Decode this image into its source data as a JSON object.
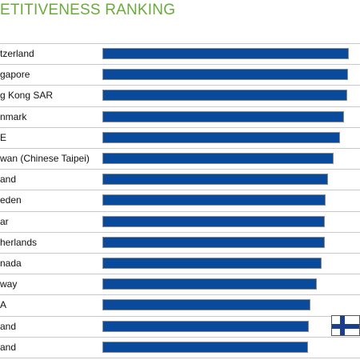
{
  "chart_data": {
    "type": "bar",
    "orientation": "horizontal",
    "title": "ETITIVENESS RANKING",
    "categories": [
      "tzerland",
      "gapore",
      "g Kong SAR",
      "nmark",
      "E",
      "wan (Chinese Taipei)",
      "and",
      "eden",
      "ar",
      "herlands",
      "nada",
      "way",
      "A",
      "and",
      "and"
    ],
    "values": [
      100,
      99.6,
      99.2,
      97.9,
      96.4,
      93.8,
      91.5,
      90.6,
      90.3,
      90.1,
      89.1,
      86.9,
      84.3,
      83.9,
      83.6
    ],
    "xlim": [
      0,
      100
    ],
    "bar_color": "#0a4a9c",
    "title_color": "#6aaa3a",
    "flag_icon": "finland-flag-icon"
  }
}
